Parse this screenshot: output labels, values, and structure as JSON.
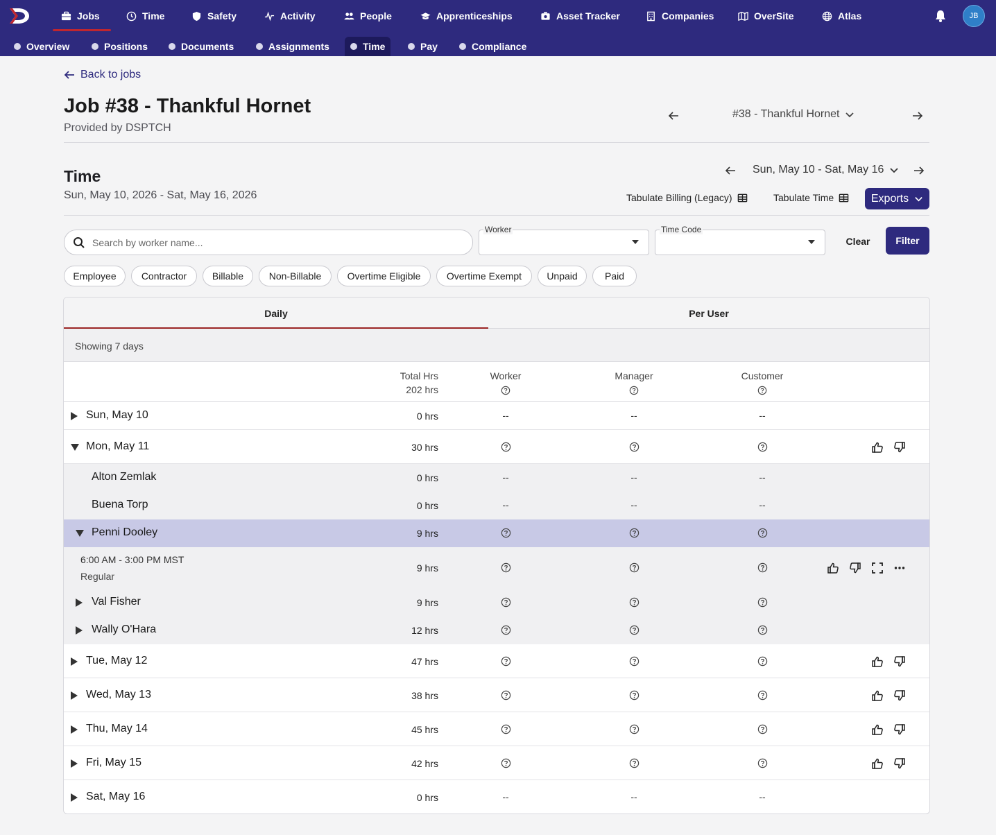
{
  "nav": {
    "items": [
      {
        "label": "Jobs",
        "icon": "briefcase-icon",
        "active": true
      },
      {
        "label": "Time",
        "icon": "clock-icon"
      },
      {
        "label": "Safety",
        "icon": "shield-icon"
      },
      {
        "label": "Activity",
        "icon": "pulse-icon"
      },
      {
        "label": "People",
        "icon": "people-icon"
      },
      {
        "label": "Apprenticeships",
        "icon": "graduation-cap-icon"
      },
      {
        "label": "Asset Tracker",
        "icon": "asset-icon"
      },
      {
        "label": "Companies",
        "icon": "building-icon"
      },
      {
        "label": "OverSite",
        "icon": "map-icon"
      },
      {
        "label": "Atlas",
        "icon": "globe-icon"
      }
    ],
    "avatar_initials": "JB"
  },
  "subnav": {
    "items": [
      {
        "label": "Overview"
      },
      {
        "label": "Positions"
      },
      {
        "label": "Documents"
      },
      {
        "label": "Assignments"
      },
      {
        "label": "Time",
        "active": true
      },
      {
        "label": "Pay"
      },
      {
        "label": "Compliance"
      }
    ]
  },
  "header": {
    "back_label": "Back to jobs",
    "job_title": "Job #38 - Thankful Hornet",
    "provided_by": "Provided by DSPTCH",
    "job_selector": "#38 - Thankful Hornet"
  },
  "time_section": {
    "title": "Time",
    "range": "Sun, May 10, 2026 - Sat, May 16, 2026",
    "date_selector": "Sun, May 10 - Sat, May 16",
    "tabulate_billing": "Tabulate Billing (Legacy)",
    "tabulate_time": "Tabulate Time",
    "exports": "Exports"
  },
  "filters": {
    "search_placeholder": "Search by worker name...",
    "worker_label": "Worker",
    "time_code_label": "Time Code",
    "clear": "Clear",
    "filter": "Filter",
    "chips": [
      "Employee",
      "Contractor",
      "Billable",
      "Non-Billable",
      "Overtime Eligible",
      "Overtime Exempt",
      "Unpaid",
      "Paid"
    ]
  },
  "table": {
    "tabs": [
      "Daily",
      "Per User"
    ],
    "showing": "Showing 7 days",
    "columns": {
      "total_hrs": "Total Hrs",
      "total_value": "202 hrs",
      "worker": "Worker",
      "manager": "Manager",
      "customer": "Customer"
    },
    "rows": [
      {
        "label": "Sun, May 10",
        "hrs": "0 hrs",
        "status": "--"
      },
      {
        "label": "Mon, May 11",
        "hrs": "30 hrs",
        "status": "?"
      },
      {
        "label": "Alton Zemlak",
        "hrs": "0 hrs",
        "status": "--"
      },
      {
        "label": "Buena Torp",
        "hrs": "0 hrs",
        "status": "--"
      },
      {
        "label": "Penni Dooley",
        "hrs": "9 hrs",
        "status": "?"
      },
      {
        "label": "6:00 AM - 3:00 PM MST",
        "code": "Regular",
        "hrs": "9 hrs",
        "status": "?"
      },
      {
        "label": "Val Fisher",
        "hrs": "9 hrs",
        "status": "?"
      },
      {
        "label": "Wally O'Hara",
        "hrs": "12 hrs",
        "status": "?"
      },
      {
        "label": "Tue, May 12",
        "hrs": "47 hrs",
        "status": "?"
      },
      {
        "label": "Wed, May 13",
        "hrs": "38 hrs",
        "status": "?"
      },
      {
        "label": "Thu, May 14",
        "hrs": "45 hrs",
        "status": "?"
      },
      {
        "label": "Fri, May 15",
        "hrs": "42 hrs",
        "status": "?"
      },
      {
        "label": "Sat, May 16",
        "hrs": "0 hrs",
        "status": "--"
      }
    ]
  },
  "colors": {
    "brand": "#2e2a7e",
    "accent": "#c0262f",
    "highlight_row": "#c8c9e6"
  }
}
